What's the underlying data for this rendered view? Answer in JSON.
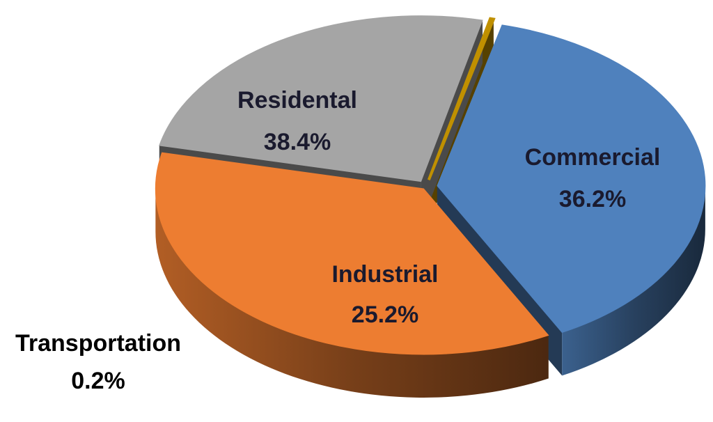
{
  "chart_data": {
    "type": "pie",
    "style": "3d-exploded",
    "slices": [
      {
        "name": "Residental",
        "value": 38.4,
        "label": "38.4%",
        "color": "#4f81bd"
      },
      {
        "name": "Commercial",
        "value": 36.2,
        "label": "36.2%",
        "color": "#ed7d31"
      },
      {
        "name": "Industrial",
        "value": 25.2,
        "label": "25.2%",
        "color": "#a5a5a5"
      },
      {
        "name": "Transportation",
        "value": 0.2,
        "label": "0.2%",
        "color": "#c09000"
      }
    ],
    "legend": "none",
    "data_labels": "category-and-percent"
  }
}
